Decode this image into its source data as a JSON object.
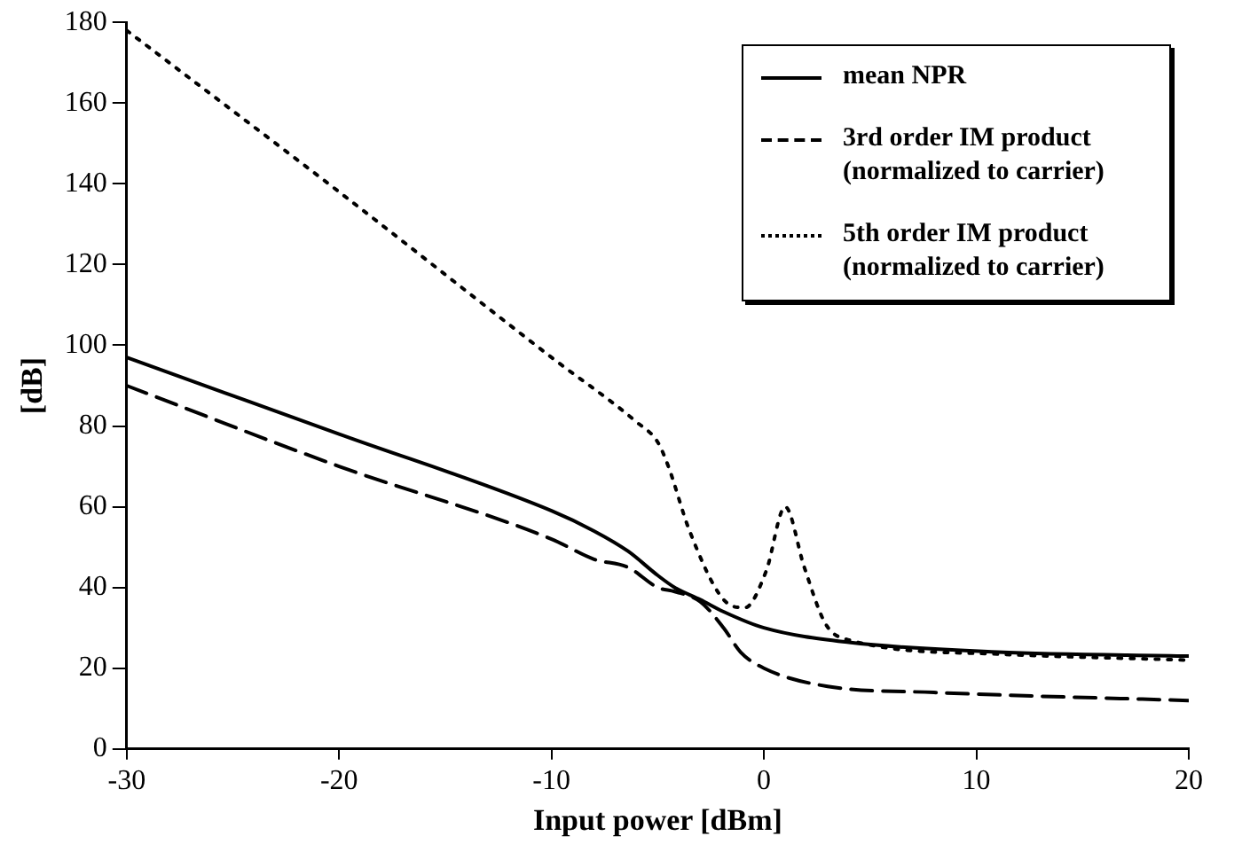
{
  "chart_data": {
    "type": "line",
    "xlabel": "Input power [dBm]",
    "ylabel": "[dB]",
    "xlim": [
      -30,
      20
    ],
    "xticks": [
      -30,
      -20,
      -10,
      0,
      10,
      20
    ],
    "ylim": [
      0,
      180
    ],
    "yticks": [
      0,
      20,
      40,
      60,
      80,
      100,
      120,
      140,
      160,
      180
    ],
    "grid": false,
    "legend": "top right",
    "marker": "none",
    "series": [
      {
        "name": "mean NPR",
        "color": "#000000",
        "line_style": "solid",
        "x": [
          -30,
          -20,
          -10,
          -8,
          -6.4,
          -5,
          -4.2,
          -3,
          -1.9,
          0,
          4,
          11,
          20
        ],
        "values": [
          97,
          78,
          59,
          54,
          49,
          43,
          40,
          37,
          34,
          30,
          26.4,
          24,
          23
        ]
      },
      {
        "name": "3rd order IM product (normalized to carrier)",
        "color": "#000000",
        "line_style": "dashed",
        "x": [
          -30,
          -20,
          -10,
          -8,
          -6.4,
          -5,
          -4.2,
          -3,
          -1.9,
          -1.1,
          0,
          3,
          8,
          20
        ],
        "values": [
          90,
          70,
          52,
          47,
          45,
          40,
          39,
          36.5,
          30,
          24,
          20,
          15.5,
          14,
          12
        ]
      },
      {
        "name": "5th order IM product (normalized to carrier)",
        "color": "#000000",
        "line_style": "dotted",
        "x": [
          -30,
          -20,
          -10,
          -6,
          -5,
          -4.5,
          -3.5,
          -1.9,
          -0.9,
          0.1,
          1,
          1.9,
          2.9,
          4,
          11,
          20
        ],
        "values": [
          178,
          138,
          97,
          81,
          76,
          70,
          54,
          37,
          35,
          44,
          60,
          45,
          31,
          27,
          23.5,
          22
        ]
      }
    ]
  }
}
